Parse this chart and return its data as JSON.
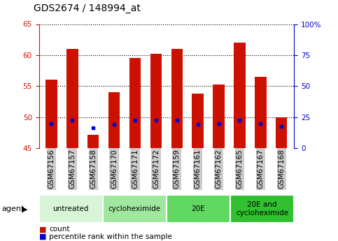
{
  "title": "GDS2674 / 148994_at",
  "samples": [
    "GSM67156",
    "GSM67157",
    "GSM67158",
    "GSM67170",
    "GSM67171",
    "GSM67172",
    "GSM67159",
    "GSM67161",
    "GSM67162",
    "GSM67165",
    "GSM67167",
    "GSM67168"
  ],
  "count_values": [
    56.0,
    61.0,
    47.2,
    54.0,
    59.5,
    60.2,
    61.0,
    53.8,
    55.3,
    62.0,
    56.5,
    50.0
  ],
  "percentile_values": [
    49.0,
    49.5,
    48.3,
    48.8,
    49.5,
    49.5,
    49.5,
    48.8,
    49.0,
    49.5,
    49.0,
    48.5
  ],
  "ymin": 45,
  "ymax": 65,
  "yticks": [
    45,
    50,
    55,
    60,
    65
  ],
  "y2min": 0,
  "y2max": 100,
  "y2ticks": [
    0,
    25,
    50,
    75,
    100
  ],
  "groups": [
    {
      "label": "untreated",
      "start": 0,
      "end": 3,
      "color": "#d8f5d8"
    },
    {
      "label": "cycloheximide",
      "start": 3,
      "end": 6,
      "color": "#a0e8a0"
    },
    {
      "label": "20E",
      "start": 6,
      "end": 9,
      "color": "#60d860"
    },
    {
      "label": "20E and\ncycloheximide",
      "start": 9,
      "end": 12,
      "color": "#30c030"
    }
  ],
  "bar_color": "#cc1100",
  "percentile_color": "#0000cc",
  "bar_width": 0.55,
  "agent_label": "agent",
  "count_label": "count",
  "percentile_label": "percentile rank within the sample",
  "background_color": "#ffffff",
  "plot_bg_color": "#ffffff",
  "tick_label_bg": "#cccccc",
  "grid_color": "#000000",
  "title_fontsize": 10,
  "tick_fontsize": 7.5,
  "group_fontsize": 7.5,
  "legend_fontsize": 7.5
}
